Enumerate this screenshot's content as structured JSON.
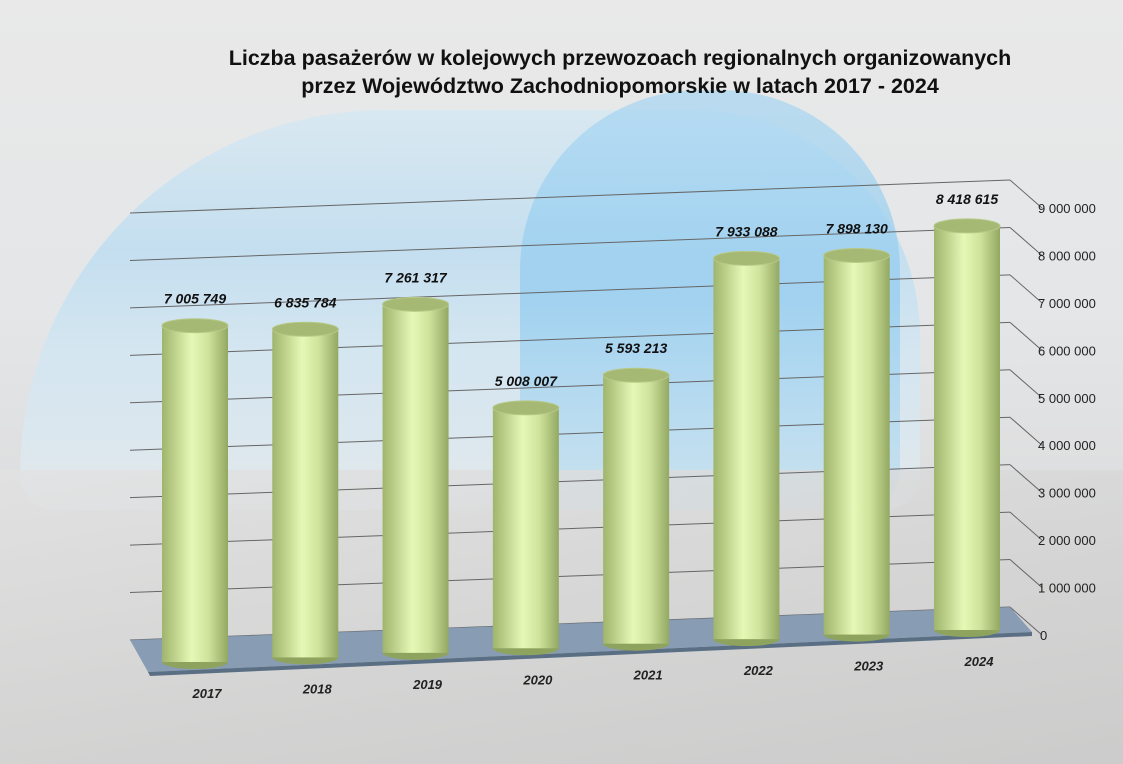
{
  "chart_data": {
    "type": "bar",
    "title": "Liczba pasażerów w kolejowych przewozoach regionalnych organizowanych przez Województwo Zachodniopomorskie w latach 2017 - 2024",
    "title_lines": [
      "Liczba pasażerów w kolejowych przewozoach regionalnych organizowanych",
      "przez Województwo Zachodniopomorskie w latach 2017 - 2024"
    ],
    "style": "3d-cylinder",
    "categories": [
      "2017",
      "2018",
      "2019",
      "2020",
      "2021",
      "2022",
      "2023",
      "2024"
    ],
    "values": [
      7005749,
      6835784,
      7261317,
      5008007,
      5593213,
      7933088,
      7898130,
      8418615
    ],
    "value_labels": [
      "7 005 749",
      "6 835 784",
      "7 261 317",
      "5 008 007",
      "5 593 213",
      "7 933 088",
      "7 898 130",
      "8 418 615"
    ],
    "ylim": [
      0,
      9000000
    ],
    "yticks": [
      0,
      1000000,
      2000000,
      3000000,
      4000000,
      5000000,
      6000000,
      7000000,
      8000000,
      9000000
    ],
    "ytick_labels": [
      "0",
      "1 000 000",
      "2 000 000",
      "3 000 000",
      "4 000 000",
      "5 000 000",
      "6 000 000",
      "7 000 000",
      "8 000 000",
      "9 000 000"
    ],
    "yaxis_side": "right",
    "grid": true,
    "xlabel": "",
    "ylabel": "",
    "colors": {
      "bar": "#c8dc94",
      "bar_highlight": "#e8f8b8",
      "bar_shadow": "#98ad66",
      "floor": "#7f97b0",
      "grid": "#666666"
    }
  }
}
